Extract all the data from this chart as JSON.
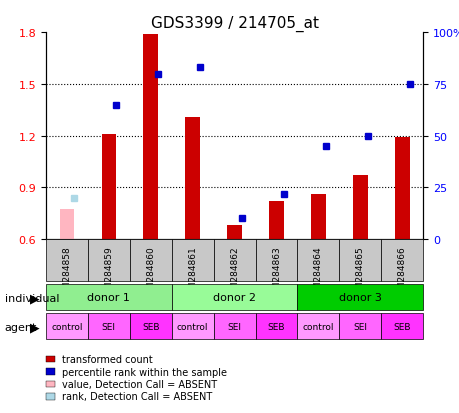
{
  "title": "GDS3399 / 214705_at",
  "samples": [
    "GSM284858",
    "GSM284859",
    "GSM284860",
    "GSM284861",
    "GSM284862",
    "GSM284863",
    "GSM284864",
    "GSM284865",
    "GSM284866"
  ],
  "red_values": [
    0.0,
    1.21,
    1.79,
    1.31,
    0.68,
    0.82,
    0.86,
    0.97,
    1.19
  ],
  "blue_values": [
    null,
    65,
    80,
    83,
    10,
    22,
    45,
    50,
    75
  ],
  "absent_red": [
    0.775,
    null,
    null,
    null,
    null,
    null,
    null,
    null,
    null
  ],
  "absent_blue": [
    0.775,
    null,
    null,
    null,
    null,
    null,
    null,
    null,
    null
  ],
  "ymin": 0.6,
  "ymax": 1.8,
  "y2min": 0,
  "y2max": 100,
  "yticks": [
    0.6,
    0.9,
    1.2,
    1.5,
    1.8
  ],
  "y2ticks": [
    0,
    25,
    50,
    75,
    100
  ],
  "y2ticklabels": [
    "0",
    "25",
    "50",
    "75",
    "100%"
  ],
  "donors": [
    {
      "label": "donor 1",
      "start": 0,
      "end": 3,
      "color": "#90EE90"
    },
    {
      "label": "donor 2",
      "start": 3,
      "end": 6,
      "color": "#98FB98"
    },
    {
      "label": "donor 3",
      "start": 6,
      "end": 9,
      "color": "#00CC00"
    }
  ],
  "agents": [
    "control",
    "SEI",
    "SEB",
    "control",
    "SEI",
    "SEB",
    "control",
    "SEI",
    "SEB"
  ],
  "agent_colors": [
    "#FF99FF",
    "#FF66FF",
    "#FF33FF",
    "#FF99FF",
    "#FF66FF",
    "#FF33FF",
    "#FF99FF",
    "#FF66FF",
    "#FF33FF"
  ],
  "bar_color": "#CC0000",
  "blue_color": "#0000CC",
  "absent_red_color": "#FFB6C1",
  "absent_blue_color": "#ADD8E6",
  "bg_color": "#C8C8C8",
  "legend_items": [
    {
      "color": "#CC0000",
      "label": "transformed count"
    },
    {
      "color": "#0000CC",
      "label": "percentile rank within the sample"
    },
    {
      "color": "#FFB6C1",
      "label": "value, Detection Call = ABSENT"
    },
    {
      "color": "#ADD8E6",
      "label": "rank, Detection Call = ABSENT"
    }
  ]
}
